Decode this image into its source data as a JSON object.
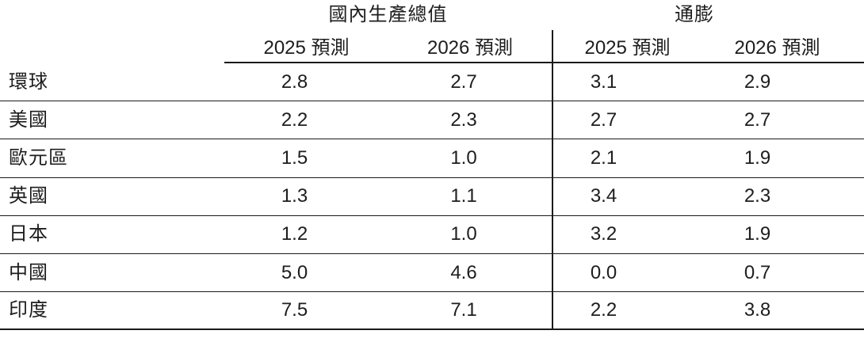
{
  "page": {
    "background": "#ffffff",
    "text_color": "#1d1d1d",
    "line_color": "#1a1a1a"
  },
  "table": {
    "groups": [
      {
        "label": "國內生產總值"
      },
      {
        "label": "通膨"
      }
    ],
    "subheaders": [
      "2025 預測",
      "2026 預測",
      "2025 預測",
      "2026 預測"
    ],
    "rows": [
      {
        "label": "環球",
        "values": [
          "2.8",
          "2.7",
          "3.1",
          "2.9"
        ]
      },
      {
        "label": "美國",
        "values": [
          "2.2",
          "2.3",
          "2.7",
          "2.7"
        ]
      },
      {
        "label": "歐元區",
        "values": [
          "1.5",
          "1.0",
          "2.1",
          "1.9"
        ]
      },
      {
        "label": "英國",
        "values": [
          "1.3",
          "1.1",
          "3.4",
          "2.3"
        ]
      },
      {
        "label": "日本",
        "values": [
          "1.2",
          "1.0",
          "3.2",
          "1.9"
        ]
      },
      {
        "label": "中國",
        "values": [
          "5.0",
          "4.6",
          "0.0",
          "0.7"
        ]
      },
      {
        "label": "印度",
        "values": [
          "7.5",
          "7.1",
          "2.2",
          "3.8"
        ]
      }
    ]
  },
  "chart_data": {
    "type": "table",
    "column_groups": [
      "國內生產總值",
      "通膨"
    ],
    "columns": [
      "國內生產總值 2025 預測",
      "國內生產總值 2026 預測",
      "通膨 2025 預測",
      "通膨 2026 預測"
    ],
    "row_labels": [
      "環球",
      "美國",
      "歐元區",
      "英國",
      "日本",
      "中國",
      "印度"
    ],
    "series": [
      {
        "name": "國內生產總值 2025 預測",
        "values": [
          2.8,
          2.2,
          1.5,
          1.3,
          1.2,
          5.0,
          7.5
        ]
      },
      {
        "name": "國內生產總值 2026 預測",
        "values": [
          2.7,
          2.3,
          1.0,
          1.1,
          1.0,
          4.6,
          7.1
        ]
      },
      {
        "name": "通膨 2025 預測",
        "values": [
          3.1,
          2.7,
          2.1,
          3.4,
          3.2,
          0.0,
          2.2
        ]
      },
      {
        "name": "通膨 2026 預測",
        "values": [
          2.9,
          2.7,
          1.9,
          2.3,
          1.9,
          0.7,
          3.8
        ]
      }
    ]
  }
}
